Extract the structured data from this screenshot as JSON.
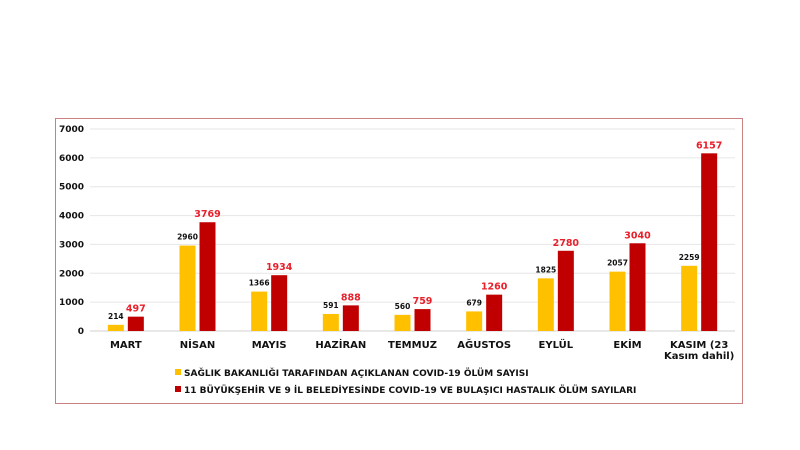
{
  "chart_data": {
    "type": "bar",
    "categories": [
      "MART",
      "NİSAN",
      "MAYIS",
      "HAZİRAN",
      "TEMMUZ",
      "AĞUSTOS",
      "EYLÜL",
      "EKİM",
      "KASIM (23 Kasım dahil)"
    ],
    "category_lines": [
      [
        "MART"
      ],
      [
        "NİSAN"
      ],
      [
        "MAYIS"
      ],
      [
        "HAZİRAN"
      ],
      [
        "TEMMUZ"
      ],
      [
        "AĞUSTOS"
      ],
      [
        "EYLÜL"
      ],
      [
        "EKİM"
      ],
      [
        "KASIM (23",
        "Kasım dahil)"
      ]
    ],
    "series": [
      {
        "name": "SAĞLIK BAKANLIĞI TARAFINDAN AÇIKLANAN COVID-19 ÖLÜM SAYISI",
        "color": "#ffc000",
        "label_color": "#111111",
        "values": [
          214,
          2960,
          1366,
          591,
          560,
          679,
          1825,
          2057,
          2259
        ]
      },
      {
        "name": "11 BÜYÜKŞEHİR VE 9 İL BELEDİYESİNDE COVID-19 VE BULAŞICI HASTALIK ÖLÜM SAYILARI",
        "color": "#c00000",
        "label_color": "#e8202a",
        "values": [
          497,
          3769,
          1934,
          888,
          759,
          1260,
          2780,
          3040,
          6157
        ]
      }
    ],
    "yticks": [
      0,
      1000,
      2000,
      3000,
      4000,
      5000,
      6000,
      7000
    ],
    "ylim": [
      0,
      7000
    ],
    "grid": true,
    "legend_position": "bottom",
    "title": "",
    "xlabel": "",
    "ylabel": ""
  }
}
